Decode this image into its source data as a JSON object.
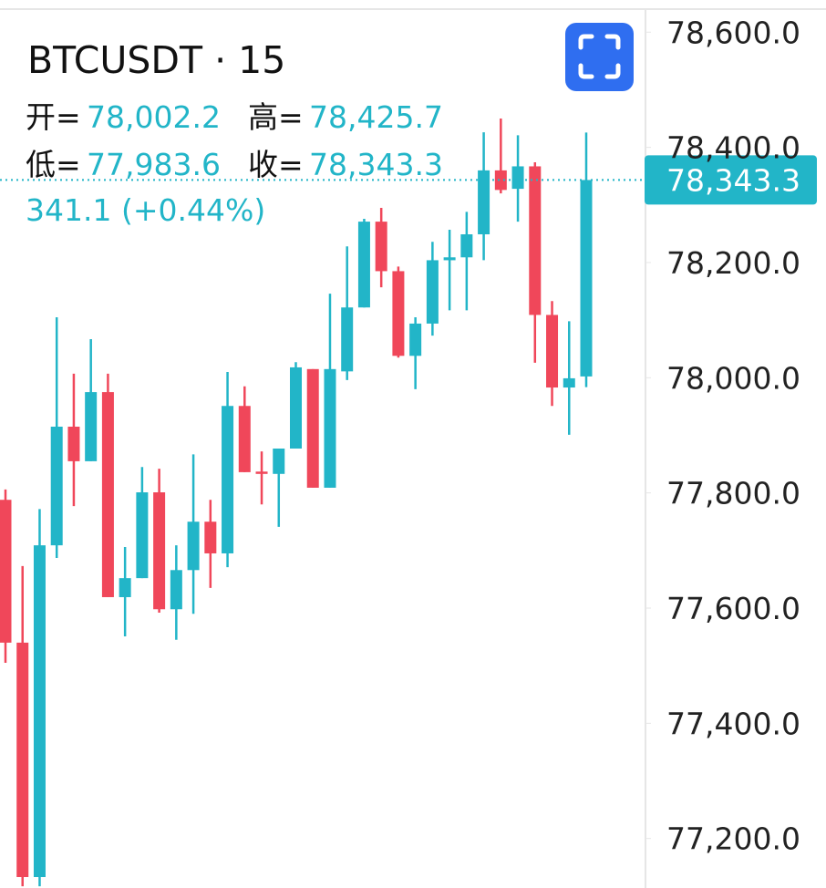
{
  "chart_data": {
    "type": "candlestick",
    "title": "BTCUSDT · 15",
    "ohlc_header": [
      {
        "key": "开=",
        "value": "78,002.2"
      },
      {
        "key": "高=",
        "value": "78,425.7"
      },
      {
        "key": "低=",
        "value": "77,983.6"
      },
      {
        "key": "收=",
        "value": "78,343.3"
      }
    ],
    "change_label": "341.1 (+0.44%)",
    "price_label": "78,343.3",
    "up_color": "#22b5c8",
    "down_color": "#f0475a",
    "open": [
      77788,
      77540,
      77133,
      77709,
      77915,
      77855,
      77975,
      77619,
      77652,
      77801,
      77598,
      77666,
      77750,
      77695,
      77951,
      77837,
      77833,
      77877,
      78015,
      77809,
      78011,
      78122,
      78271,
      78185,
      78038,
      78094,
      78204,
      78209,
      78249,
      78360,
      78328,
      78367,
      78109,
      77983,
      78002.2
    ],
    "high": [
      77806,
      77673,
      77772,
      78105,
      78007,
      78067,
      78007,
      77706,
      77845,
      77842,
      77709,
      77867,
      77788,
      78010,
      77985,
      77872,
      77877,
      78027,
      78015,
      78146,
      78228,
      78276,
      78295,
      78193,
      78105,
      78236,
      78257,
      78288,
      78426,
      78450,
      78421,
      78374,
      78133,
      78098,
      78425.7
    ],
    "low": [
      77505,
      77117,
      77117,
      77687,
      77777,
      77855,
      77619,
      77551,
      77652,
      77592,
      77545,
      77590,
      77635,
      77671,
      77836,
      77780,
      77741,
      77877,
      77809,
      77809,
      77996,
      78122,
      78157,
      78035,
      77980,
      78073,
      78117,
      78117,
      78204,
      78320,
      78271,
      78026,
      77951,
      77901,
      77983.6
    ],
    "close": [
      77540,
      77133,
      77709,
      77915,
      77855,
      77975,
      77619,
      77652,
      77801,
      77598,
      77666,
      77750,
      77695,
      77951,
      77836,
      77833,
      77877,
      78018,
      77809,
      78015,
      78122,
      78271,
      78185,
      78038,
      78094,
      78204,
      78209,
      78249,
      78360,
      78326,
      78367,
      78109,
      77983,
      77999,
      78343.3
    ],
    "ylim": [
      77114,
      78640
    ],
    "yticks": [
      {
        "value": 77200,
        "label": "77,200.0"
      },
      {
        "value": 77400,
        "label": "77,400.0"
      },
      {
        "value": 77600,
        "label": "77,600.0"
      },
      {
        "value": 77800,
        "label": "77,800.0"
      },
      {
        "value": 78000,
        "label": "78,000.0"
      },
      {
        "value": 78200,
        "label": "78,200.0"
      },
      {
        "value": 78400,
        "label": "78,400.0"
      },
      {
        "value": 78600,
        "label": "78,600.0"
      }
    ]
  }
}
